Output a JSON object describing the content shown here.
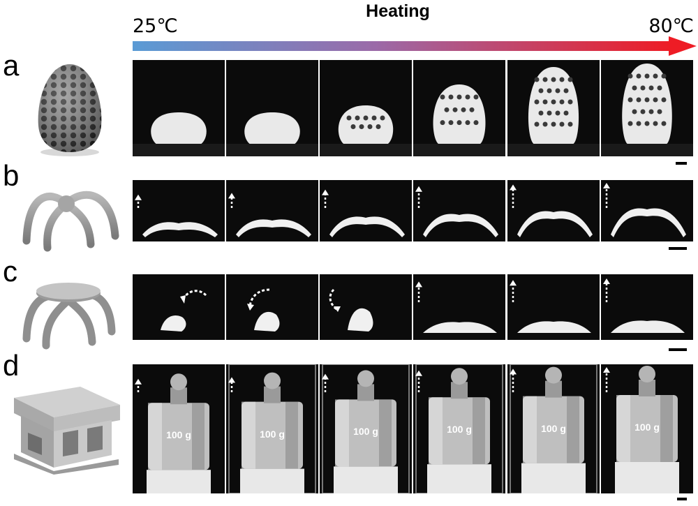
{
  "header": {
    "title": "Heating",
    "temp_start": "25℃",
    "temp_end": "80℃",
    "gradient_start_color": "#5a9bd5",
    "gradient_end_color": "#ee1c25"
  },
  "rows": [
    {
      "letter": "a",
      "render": "lattice-egg"
    },
    {
      "letter": "b",
      "render": "four-leg-gripper"
    },
    {
      "letter": "c",
      "render": "gripper-with-disc"
    },
    {
      "letter": "d",
      "render": "hollow-block"
    }
  ],
  "weight_label": "100 g",
  "stage_levels": {
    "egg_height_fraction": [
      0.25,
      0.25,
      0.35,
      0.65,
      0.9,
      0.95
    ],
    "dashed_arrow_length_fraction": [
      0.3,
      0.4,
      0.6,
      0.8,
      0.9,
      1.0
    ]
  }
}
